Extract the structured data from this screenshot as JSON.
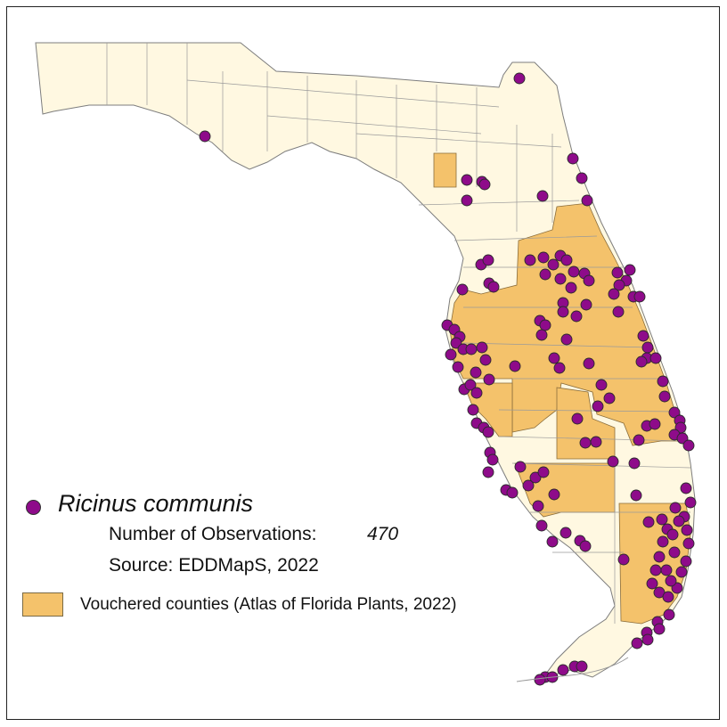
{
  "legend": {
    "species": "Ricinus communis",
    "observations_label": "Number of Observations:",
    "observations_value": "470",
    "source": "Source: EDDMapS, 2022",
    "vouchered_label": "Vouchered counties (Atlas of Florida Plants, 2022)"
  },
  "colors": {
    "land": "#fff8e1",
    "vouchered": "#f4c26b",
    "county_border": "#8a8a8a",
    "observation_dot": "#8e0b8a"
  }
}
